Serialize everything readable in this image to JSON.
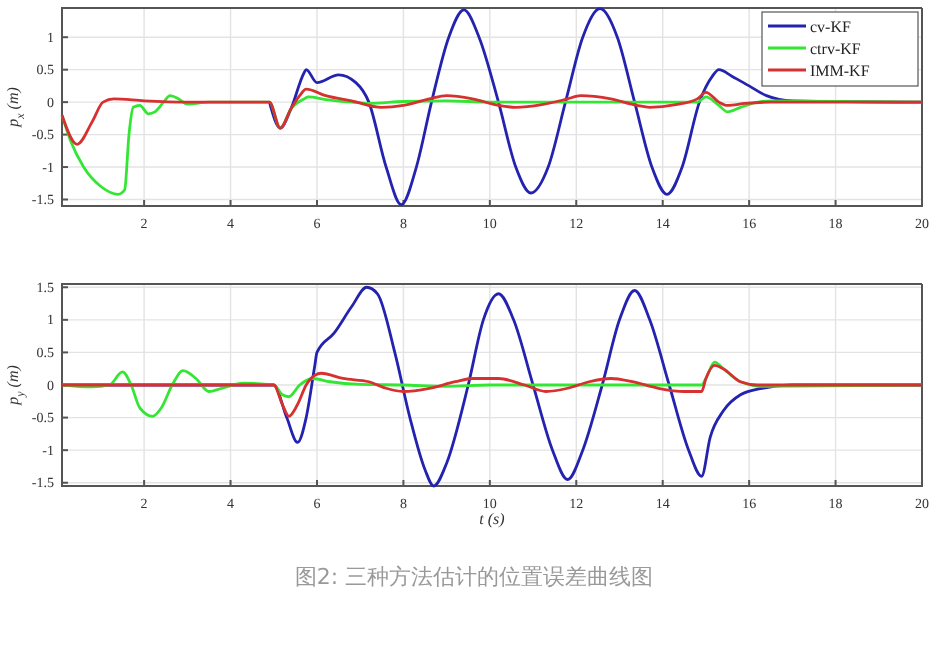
{
  "chart_data": [
    {
      "type": "line",
      "ylabel": "p$_{x}$ (m)",
      "xlim": [
        0.1,
        20
      ],
      "ylim": [
        -1.6,
        1.45
      ],
      "xticks": [
        2,
        4,
        6,
        8,
        10,
        12,
        14,
        16,
        18,
        20
      ],
      "yticks": [
        -1.5,
        -1,
        -0.5,
        0,
        0.5,
        1
      ],
      "grid": true,
      "legend": "top right",
      "line_style": "solid",
      "marker": "none",
      "series": [
        {
          "name": "cv-KF",
          "color": "#2323b0",
          "x": [
            4.9,
            5.15,
            5.4,
            5.7,
            5.75,
            6.0,
            6.5,
            6.9,
            7.2,
            7.6,
            7.95,
            8.3,
            8.65,
            9.05,
            9.4,
            9.75,
            10.2,
            10.6,
            10.95,
            11.35,
            11.75,
            12.15,
            12.55,
            12.95,
            13.35,
            13.75,
            14.1,
            14.45,
            14.85,
            15.15,
            15.3,
            15.6,
            16,
            16.4,
            17,
            20
          ],
          "values": [
            0,
            -0.4,
            -0.1,
            0.45,
            0.5,
            0.3,
            0.42,
            0.3,
            0,
            -1.0,
            -1.58,
            -1.0,
            0,
            1.0,
            1.42,
            1.0,
            0,
            -1.0,
            -1.4,
            -1.0,
            0,
            1.0,
            1.44,
            1.0,
            0,
            -1.0,
            -1.42,
            -1.0,
            0,
            0.4,
            0.5,
            0.4,
            0.25,
            0.1,
            0.02,
            0
          ]
        },
        {
          "name": "ctrv-KF",
          "color": "#33e633",
          "x": [
            0.1,
            0.3,
            0.6,
            1.0,
            1.4,
            1.55,
            1.65,
            1.75,
            1.9,
            2.1,
            2.25,
            2.45,
            2.6,
            2.8,
            3.0,
            3.5,
            4.9,
            5.15,
            5.4,
            5.7,
            5.8,
            6.2,
            6.8,
            7.2,
            8,
            9,
            10,
            14.8,
            15.0,
            15.3,
            15.5,
            15.8,
            16.2,
            16.5,
            20
          ],
          "values": [
            -0.2,
            -0.6,
            -1.0,
            -1.3,
            -1.42,
            -1.35,
            -0.5,
            -0.08,
            -0.05,
            -0.18,
            -0.15,
            0,
            0.1,
            0.05,
            -0.03,
            0,
            0,
            -0.4,
            -0.1,
            0.05,
            0.08,
            0.04,
            0,
            -0.02,
            0.01,
            0.02,
            0,
            0,
            0.08,
            -0.05,
            -0.15,
            -0.08,
            0,
            0.02,
            0
          ]
        },
        {
          "name": "IMM-KF",
          "color": "#d63030",
          "x": [
            0.1,
            0.45,
            0.8,
            1.05,
            1.3,
            2,
            3,
            4.9,
            5.15,
            5.4,
            5.6,
            5.75,
            6.2,
            6.8,
            7.5,
            8,
            8.6,
            9.0,
            9.6,
            10.2,
            10.6,
            11.2,
            11.8,
            12.1,
            12.8,
            13.4,
            13.7,
            14.3,
            14.8,
            15.0,
            15.3,
            15.5,
            15.9,
            16.5,
            20
          ],
          "values": [
            -0.2,
            -0.65,
            -0.3,
            0,
            0.05,
            0.02,
            0,
            0,
            -0.4,
            -0.1,
            0.1,
            0.2,
            0.1,
            0.02,
            -0.08,
            -0.05,
            0.05,
            0.1,
            0.05,
            -0.05,
            -0.08,
            -0.04,
            0.05,
            0.1,
            0.05,
            -0.05,
            -0.08,
            -0.04,
            0.05,
            0.15,
            0,
            -0.05,
            -0.02,
            0,
            0
          ]
        }
      ]
    },
    {
      "type": "line",
      "ylabel": "p$_{y}$ (m)",
      "xlabel": "t (s)",
      "xlim": [
        0.1,
        20
      ],
      "ylim": [
        -1.55,
        1.55
      ],
      "xticks": [
        2,
        4,
        6,
        8,
        10,
        12,
        14,
        16,
        18,
        20
      ],
      "yticks": [
        -1.5,
        -1,
        -0.5,
        0,
        0.5,
        1,
        1.5
      ],
      "grid": true,
      "line_style": "solid",
      "marker": "none",
      "annotations": [
        "图2: 三种方法估计的位置误差曲线图"
      ],
      "series": [
        {
          "color": "#2323b0",
          "x": [
            0.1,
            5.0,
            5.3,
            5.55,
            5.75,
            5.95,
            6.0,
            6.4,
            6.8,
            7.15,
            7.4,
            7.8,
            8.15,
            8.5,
            8.7,
            9.0,
            9.5,
            9.85,
            10.2,
            10.55,
            11.0,
            11.45,
            11.8,
            12.15,
            12.6,
            13.0,
            13.35,
            13.7,
            14.15,
            14.6,
            14.9,
            15.1,
            15.4,
            15.8,
            16.3,
            17,
            20
          ],
          "values": [
            0,
            0,
            -0.5,
            -0.88,
            -0.5,
            0.3,
            0.5,
            0.8,
            1.2,
            1.5,
            1.4,
            0.5,
            -0.5,
            -1.3,
            -1.55,
            -1.2,
            0,
            1.0,
            1.4,
            1.0,
            0,
            -1.0,
            -1.45,
            -1.0,
            0,
            1.0,
            1.45,
            1.0,
            0,
            -1.0,
            -1.4,
            -0.8,
            -0.4,
            -0.15,
            -0.05,
            0,
            0
          ]
        },
        {
          "color": "#33e633",
          "x": [
            0.1,
            0.8,
            1.2,
            1.5,
            1.7,
            1.9,
            2.2,
            2.4,
            2.65,
            2.9,
            3.2,
            3.5,
            3.8,
            4.3,
            5.0,
            5.2,
            5.35,
            5.6,
            5.9,
            6.3,
            7,
            8,
            9,
            10,
            14.9,
            15.0,
            15.2,
            15.4,
            15.8,
            16.3,
            20
          ],
          "values": [
            0,
            -0.03,
            0,
            0.2,
            0,
            -0.35,
            -0.48,
            -0.35,
            0,
            0.22,
            0.1,
            -0.1,
            -0.05,
            0.03,
            0,
            -0.15,
            -0.18,
            0,
            0.1,
            0.05,
            0.01,
            0,
            -0.02,
            0,
            0,
            0.1,
            0.35,
            0.25,
            0.05,
            -0.02,
            0
          ]
        },
        {
          "color": "#d63030",
          "x": [
            0.1,
            5.0,
            5.2,
            5.35,
            5.55,
            5.75,
            5.95,
            6.1,
            6.6,
            7.2,
            7.6,
            8.0,
            8.6,
            9.2,
            9.6,
            10.2,
            10.8,
            11.3,
            11.8,
            12.3,
            12.8,
            13.3,
            13.9,
            14.5,
            14.9,
            15.0,
            15.2,
            15.4,
            15.8,
            16.2,
            20
          ],
          "values": [
            0,
            0,
            -0.3,
            -0.48,
            -0.3,
            0,
            0.15,
            0.18,
            0.1,
            0.05,
            -0.05,
            -0.1,
            -0.05,
            0.05,
            0.1,
            0.1,
            0,
            -0.1,
            -0.05,
            0.05,
            0.1,
            0.05,
            -0.05,
            -0.1,
            -0.1,
            0.1,
            0.3,
            0.25,
            0.05,
            0,
            0
          ]
        }
      ]
    }
  ]
}
